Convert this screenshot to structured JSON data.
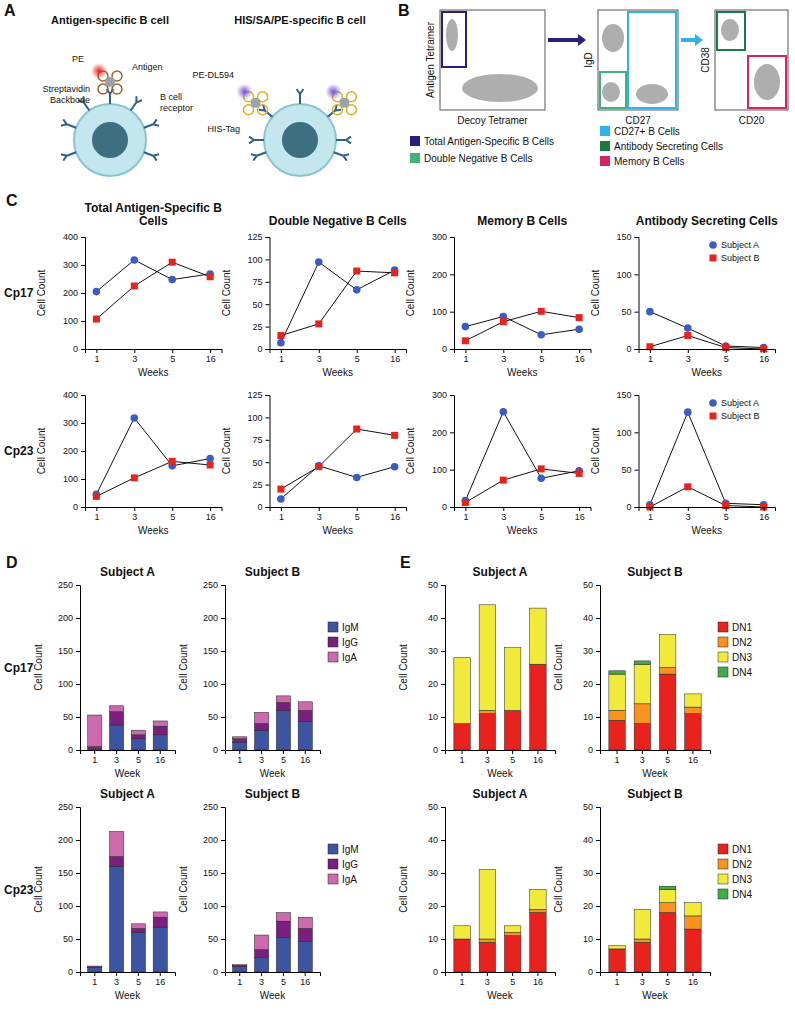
{
  "diagram_a": {
    "panel": "A",
    "cells": [
      {
        "title": "Antigen-specific B cell",
        "labels": [
          "PE",
          "Antigen",
          "Streptavidin Backbone",
          "B cell receptor"
        ]
      },
      {
        "title": "HIS/SA/PE-specific B cell",
        "labels": [
          "PE-DL594",
          "HIS-Tag"
        ]
      }
    ]
  },
  "diagram_b": {
    "panel": "B",
    "plots": [
      {
        "x_label": "Decoy Tetramer",
        "y_label": "Antigen Tetramer"
      },
      {
        "x_label": "CD27",
        "y_label": "IgD"
      },
      {
        "x_label": "CD20",
        "y_label": "CD38"
      }
    ],
    "gates": [
      {
        "label": "Total Antigen-Specific B Cells",
        "color": "#28207a"
      },
      {
        "label": "Double Negative B Cells",
        "color": "#3db27a"
      },
      {
        "label": "CD27+ B Cells",
        "color": "#2fb2e6"
      },
      {
        "label": "Antibody Secreting Cells",
        "color": "#1c7a3e"
      },
      {
        "label": "Memory B Cells",
        "color": "#d8245e"
      }
    ]
  },
  "chart_data": [
    {
      "type": "line",
      "panel": "C",
      "title": "Total Antigen-Specific B Cells",
      "row_label": "Cp17",
      "x_label": "Weeks",
      "y_label": "Cell Count",
      "categories": [
        "1",
        "3",
        "5",
        "16"
      ],
      "ylim": [
        0,
        400
      ],
      "yticks": [
        0,
        100,
        200,
        300,
        400
      ],
      "series": [
        {
          "color": "#3b5bc6",
          "marker": "circle",
          "values": [
            205,
            318,
            248,
            268
          ]
        },
        {
          "color": "#e8231e",
          "marker": "square",
          "values": [
            107,
            225,
            310,
            258
          ]
        }
      ]
    },
    {
      "type": "line",
      "title": "Double Negative B Cells",
      "x_label": "Weeks",
      "y_label": "Cell Count",
      "categories": [
        "1",
        "3",
        "5",
        "16"
      ],
      "ylim": [
        0,
        125
      ],
      "yticks": [
        0,
        25,
        50,
        75,
        100,
        125
      ],
      "series": [
        {
          "color": "#3b5bc6",
          "marker": "circle",
          "values": [
            7,
            97,
            66,
            88
          ]
        },
        {
          "color": "#e8231e",
          "marker": "square",
          "values": [
            15,
            28,
            87,
            85
          ]
        }
      ]
    },
    {
      "type": "line",
      "title": "Memory B Cells",
      "x_label": "Weeks",
      "y_label": "Cell Count",
      "categories": [
        "1",
        "3",
        "5",
        "16"
      ],
      "ylim": [
        0,
        300
      ],
      "yticks": [
        0,
        100,
        200,
        300
      ],
      "series": [
        {
          "color": "#3b5bc6",
          "marker": "circle",
          "values": [
            60,
            87,
            38,
            53
          ]
        },
        {
          "color": "#e8231e",
          "marker": "square",
          "values": [
            22,
            73,
            101,
            84
          ]
        }
      ]
    },
    {
      "type": "line",
      "title": "Antibody Secreting Cells",
      "x_label": "Weeks",
      "y_label": "Cell Count",
      "categories": [
        "1",
        "3",
        "5",
        "16"
      ],
      "ylim": [
        0,
        150
      ],
      "yticks": [
        0,
        50,
        100,
        150
      ],
      "legend": "upper right",
      "series": [
        {
          "name": "Subject A",
          "color": "#3b5bc6",
          "marker": "circle",
          "values": [
            50,
            28,
            4,
            2
          ]
        },
        {
          "name": "Subject B",
          "color": "#e8231e",
          "marker": "square",
          "values": [
            3,
            18,
            2,
            0
          ]
        }
      ]
    },
    {
      "type": "line",
      "row_label": "Cp23",
      "x_label": "Weeks",
      "y_label": "Cell Count",
      "categories": [
        "1",
        "3",
        "5",
        "16"
      ],
      "ylim": [
        0,
        400
      ],
      "yticks": [
        0,
        100,
        200,
        300,
        400
      ],
      "series": [
        {
          "color": "#3b5bc6",
          "marker": "circle",
          "values": [
            45,
            318,
            147,
            173
          ]
        },
        {
          "color": "#e8231e",
          "marker": "square",
          "values": [
            38,
            104,
            163,
            150
          ]
        }
      ]
    },
    {
      "type": "line",
      "x_label": "Weeks",
      "y_label": "Cell Count",
      "categories": [
        "1",
        "3",
        "5",
        "16"
      ],
      "ylim": [
        0,
        125
      ],
      "yticks": [
        0,
        25,
        50,
        75,
        100,
        125
      ],
      "series": [
        {
          "color": "#3b5bc6",
          "marker": "circle",
          "values": [
            9,
            46,
            33,
            45
          ]
        },
        {
          "color": "#e8231e",
          "marker": "square",
          "values": [
            20,
            45,
            87,
            80
          ]
        }
      ]
    },
    {
      "type": "line",
      "x_label": "Weeks",
      "y_label": "Cell Count",
      "categories": [
        "1",
        "3",
        "5",
        "16"
      ],
      "ylim": [
        0,
        300
      ],
      "yticks": [
        0,
        100,
        200,
        300
      ],
      "series": [
        {
          "color": "#3b5bc6",
          "marker": "circle",
          "values": [
            17,
            255,
            77,
            97
          ]
        },
        {
          "color": "#e8231e",
          "marker": "square",
          "values": [
            12,
            72,
            102,
            90
          ]
        }
      ]
    },
    {
      "type": "line",
      "x_label": "Weeks",
      "y_label": "Cell Count",
      "categories": [
        "1",
        "3",
        "5",
        "16"
      ],
      "ylim": [
        0,
        150
      ],
      "yticks": [
        0,
        50,
        100,
        150
      ],
      "legend": "upper right",
      "series": [
        {
          "name": "Subject A",
          "color": "#3b5bc6",
          "marker": "circle",
          "values": [
            3,
            127,
            5,
            3
          ]
        },
        {
          "name": "Subject B",
          "color": "#e8231e",
          "marker": "square",
          "values": [
            0,
            27,
            2,
            0
          ]
        }
      ]
    },
    {
      "type": "bar",
      "stacked": true,
      "panel": "D",
      "title": "Subject A",
      "row_label": "Cp17",
      "x_label": "Week",
      "y_label": "Cell Count",
      "categories": [
        "1",
        "3",
        "5",
        "16"
      ],
      "ylim": [
        0,
        250
      ],
      "yticks": [
        0,
        50,
        100,
        150,
        200,
        250
      ],
      "series": [
        {
          "color": "#3d54a3",
          "values": [
            0,
            38,
            17,
            23
          ]
        },
        {
          "color": "#7b1f7f",
          "values": [
            5,
            20,
            6,
            13
          ]
        },
        {
          "color": "#cc6aad",
          "values": [
            48,
            9,
            7,
            8
          ]
        }
      ]
    },
    {
      "type": "bar",
      "stacked": true,
      "title": "Subject B",
      "x_label": "Week",
      "y_label": "Cell Count",
      "categories": [
        "1",
        "3",
        "5",
        "16"
      ],
      "ylim": [
        0,
        250
      ],
      "yticks": [
        0,
        50,
        100,
        150,
        200,
        250
      ],
      "legend": "right",
      "series": [
        {
          "name": "IgM",
          "color": "#3d54a3",
          "values": [
            12,
            30,
            60,
            43
          ]
        },
        {
          "name": "IgG",
          "color": "#7b1f7f",
          "values": [
            5,
            10,
            12,
            17
          ]
        },
        {
          "name": "IgA",
          "color": "#cc6aad",
          "values": [
            3,
            17,
            10,
            13
          ]
        }
      ]
    },
    {
      "type": "bar",
      "stacked": true,
      "title": "Subject A",
      "row_label": "Cp23",
      "x_label": "Week",
      "y_label": "Cell Count",
      "categories": [
        "1",
        "3",
        "5",
        "16"
      ],
      "ylim": [
        0,
        250
      ],
      "yticks": [
        0,
        50,
        100,
        150,
        200,
        250
      ],
      "series": [
        {
          "color": "#3d54a3",
          "values": [
            7,
            160,
            60,
            68
          ]
        },
        {
          "color": "#7b1f7f",
          "values": [
            1,
            15,
            6,
            15
          ]
        },
        {
          "color": "#cc6aad",
          "values": [
            1,
            38,
            7,
            8
          ]
        }
      ]
    },
    {
      "type": "bar",
      "stacked": true,
      "title": "Subject B",
      "x_label": "Week",
      "y_label": "Cell Count",
      "categories": [
        "1",
        "3",
        "5",
        "16"
      ],
      "ylim": [
        0,
        250
      ],
      "yticks": [
        0,
        50,
        100,
        150,
        200,
        250
      ],
      "legend": "right",
      "series": [
        {
          "name": "IgM",
          "color": "#3d54a3",
          "values": [
            8,
            22,
            52,
            46
          ]
        },
        {
          "name": "IgG",
          "color": "#7b1f7f",
          "values": [
            2,
            12,
            25,
            20
          ]
        },
        {
          "name": "IgA",
          "color": "#cc6aad",
          "values": [
            1,
            22,
            13,
            17
          ]
        }
      ]
    },
    {
      "type": "bar",
      "stacked": true,
      "panel": "E",
      "title": "Subject A",
      "x_label": "Week",
      "y_label": "Cell Count",
      "categories": [
        "1",
        "3",
        "5",
        "16"
      ],
      "ylim": [
        0,
        50
      ],
      "yticks": [
        0,
        10,
        20,
        30,
        40,
        50
      ],
      "series": [
        {
          "color": "#e8231e",
          "values": [
            8,
            11,
            12,
            26
          ]
        },
        {
          "color": "#f7931e",
          "values": [
            0,
            1,
            0,
            0
          ]
        },
        {
          "color": "#f2ea3a",
          "values": [
            20,
            32,
            19,
            17
          ]
        },
        {
          "color": "#3fae49",
          "values": [
            0,
            0,
            0,
            0
          ]
        }
      ]
    },
    {
      "type": "bar",
      "stacked": true,
      "title": "Subject B",
      "x_label": "Week",
      "y_label": "Cell Count",
      "categories": [
        "1",
        "3",
        "5",
        "16"
      ],
      "ylim": [
        0,
        50
      ],
      "yticks": [
        0,
        10,
        20,
        30,
        40,
        50
      ],
      "legend": "right",
      "series": [
        {
          "name": "DN1",
          "color": "#e8231e",
          "values": [
            9,
            8,
            23,
            11
          ]
        },
        {
          "name": "DN2",
          "color": "#f7931e",
          "values": [
            3,
            6,
            2,
            2
          ]
        },
        {
          "name": "DN3",
          "color": "#f2ea3a",
          "values": [
            11,
            12,
            10,
            4
          ]
        },
        {
          "name": "DN4",
          "color": "#3fae49",
          "values": [
            1,
            1,
            0,
            0
          ]
        }
      ]
    },
    {
      "type": "bar",
      "stacked": true,
      "title": "Subject A",
      "x_label": "Week",
      "y_label": "Cell Count",
      "categories": [
        "1",
        "3",
        "5",
        "16"
      ],
      "ylim": [
        0,
        50
      ],
      "yticks": [
        0,
        10,
        20,
        30,
        40,
        50
      ],
      "series": [
        {
          "color": "#e8231e",
          "values": [
            10,
            9,
            11,
            18
          ]
        },
        {
          "color": "#f7931e",
          "values": [
            0,
            1,
            1,
            1
          ]
        },
        {
          "color": "#f2ea3a",
          "values": [
            4,
            21,
            2,
            6
          ]
        },
        {
          "color": "#3fae49",
          "values": [
            0,
            0,
            0,
            0
          ]
        }
      ]
    },
    {
      "type": "bar",
      "stacked": true,
      "title": "Subject B",
      "x_label": "Week",
      "y_label": "Cell Count",
      "categories": [
        "1",
        "3",
        "5",
        "16"
      ],
      "ylim": [
        0,
        50
      ],
      "yticks": [
        0,
        10,
        20,
        30,
        40,
        50
      ],
      "legend": "right",
      "series": [
        {
          "name": "DN1",
          "color": "#e8231e",
          "values": [
            7,
            9,
            18,
            13
          ]
        },
        {
          "name": "DN2",
          "color": "#f7931e",
          "values": [
            0,
            1,
            3,
            4
          ]
        },
        {
          "name": "DN3",
          "color": "#f2ea3a",
          "values": [
            1,
            9,
            4,
            4
          ]
        },
        {
          "name": "DN4",
          "color": "#3fae49",
          "values": [
            0,
            0,
            1,
            0
          ]
        }
      ]
    }
  ]
}
